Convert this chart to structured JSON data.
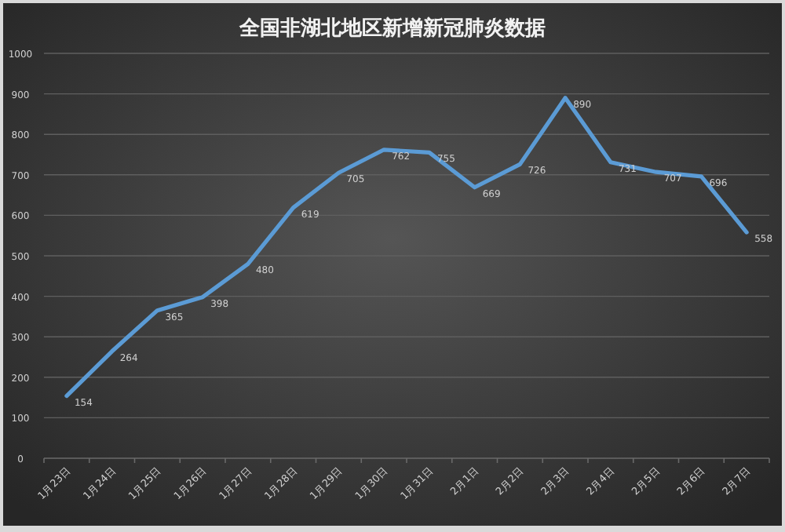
{
  "chart_data": {
    "type": "line",
    "title": "全国非湖北地区新增新冠肺炎数据",
    "categories": [
      "1月23日",
      "1月24日",
      "1月25日",
      "1月26日",
      "1月27日",
      "1月28日",
      "1月29日",
      "1月30日",
      "1月31日",
      "2月1日",
      "2月2日",
      "2月3日",
      "2月4日",
      "2月5日",
      "2月6日",
      "2月7日"
    ],
    "series": [
      {
        "color": "#5b9bd5",
        "values": [
          154,
          264,
          365,
          398,
          480,
          619,
          705,
          762,
          755,
          669,
          726,
          890,
          731,
          707,
          696,
          558
        ]
      }
    ],
    "ylim": [
      0,
      1000
    ],
    "yticks": [
      0,
      100,
      200,
      300,
      400,
      500,
      600,
      700,
      800,
      900,
      1000
    ],
    "grid": "y",
    "data_labels": true,
    "marker": "none",
    "line_style": "solid"
  }
}
